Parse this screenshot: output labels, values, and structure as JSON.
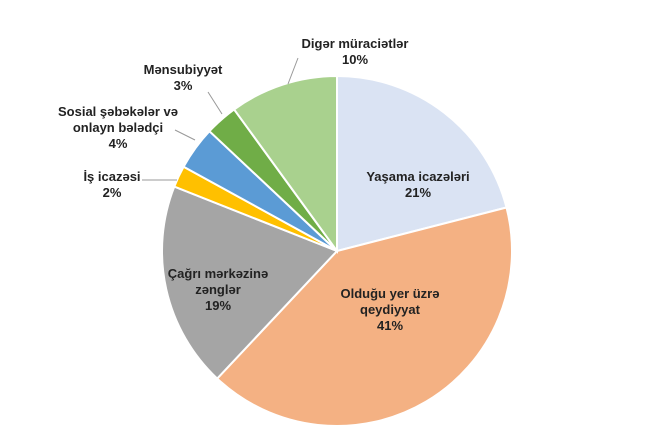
{
  "chart_data": {
    "type": "pie",
    "categories": [
      "Yaşama icazələri",
      "Olduğu yer üzrə qeydiyyat",
      "Çağrı mərkəzinə zənglər",
      "İş icazəsi",
      "Sosial şəbəkələr və onlayn bələdçi",
      "Mənsubiyyət",
      "Digər müraciətlər"
    ],
    "values": [
      21,
      41,
      19,
      2,
      4,
      3,
      10
    ],
    "value_labels": [
      "21%",
      "41%",
      "19%",
      "2%",
      "4%",
      "3%",
      "10%"
    ],
    "colors": [
      "#dae3f3",
      "#f4b183",
      "#a5a5a5",
      "#ffc000",
      "#5b9bd5",
      "#70ad47",
      "#a9d18e"
    ]
  }
}
